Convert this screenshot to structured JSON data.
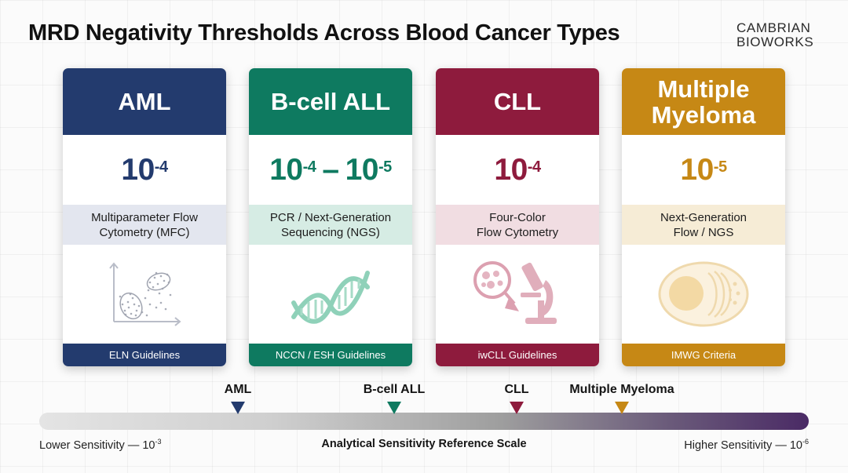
{
  "title": "MRD Negativity Thresholds Across Blood Cancer Types",
  "brand": {
    "line1": "CAMBRIAN",
    "line2": "BIOWORKS"
  },
  "cards": [
    {
      "name": "AML",
      "threshold": {
        "base": "10",
        "exp": "-4"
      },
      "method": [
        "Multiparameter Flow",
        "Cytometry (MFC)"
      ],
      "icon": "scatter-plot-icon",
      "guideline": "ELN Guidelines",
      "color": "#233b6e",
      "tint": "#e3e6ef"
    },
    {
      "name": "B-cell ALL",
      "threshold": {
        "base": "10",
        "exp": "-4",
        "dash": "–",
        "base2": "10",
        "exp2": "-5"
      },
      "method": [
        "PCR / Next-Generation",
        "Sequencing (NGS)"
      ],
      "icon": "dna-helix-icon",
      "guideline": "NCCN / ESH Guidelines",
      "color": "#0e7a60",
      "tint": "#d6ece4"
    },
    {
      "name": "CLL",
      "threshold": {
        "base": "10",
        "exp": "-4"
      },
      "method": [
        "Four-Color",
        "Flow Cytometry"
      ],
      "icon": "microscope-icon",
      "guideline": "iwCLL Guidelines",
      "color": "#8e1b3d",
      "tint": "#f1dde2"
    },
    {
      "name": "Multiple Myeloma",
      "name_lines": [
        "Multiple",
        "Myeloma"
      ],
      "threshold": {
        "base": "10",
        "exp": "-5"
      },
      "method": [
        "Next-Generation",
        "Flow / NGS"
      ],
      "icon": "plasma-cell-icon",
      "guideline": "IMWG Criteria",
      "color": "#c68815",
      "tint": "#f6ecd6"
    }
  ],
  "scale": {
    "markers": [
      {
        "label": "AML",
        "color": "#233b6e"
      },
      {
        "label": "B-cell ALL",
        "color": "#0e7a60"
      },
      {
        "label": "CLL",
        "color": "#8e1b3d"
      },
      {
        "label": "Multiple Myeloma",
        "color": "#c68815"
      }
    ],
    "left_label": "Lower Sensitivity — 10",
    "left_exp": "-3",
    "right_label": "Higher Sensitivity — 10",
    "right_exp": "-6",
    "center_label": "Analytical Sensitivity Reference Scale"
  }
}
